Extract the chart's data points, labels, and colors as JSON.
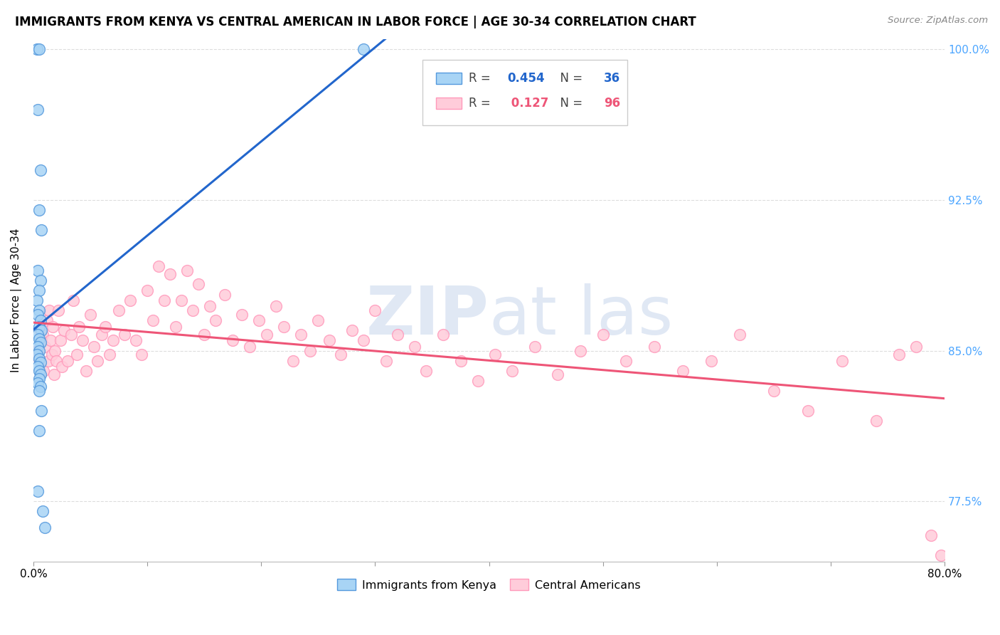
{
  "title": "IMMIGRANTS FROM KENYA VS CENTRAL AMERICAN IN LABOR FORCE | AGE 30-34 CORRELATION CHART",
  "source": "Source: ZipAtlas.com",
  "ylabel": "In Labor Force | Age 30-34",
  "xlim": [
    0.0,
    0.8
  ],
  "ylim": [
    0.745,
    1.005
  ],
  "xticks": [
    0.0,
    0.1,
    0.2,
    0.3,
    0.4,
    0.5,
    0.6,
    0.7,
    0.8
  ],
  "xticklabels": [
    "0.0%",
    "",
    "",
    "",
    "",
    "",
    "",
    "",
    "80.0%"
  ],
  "yticks": [
    0.775,
    0.85,
    0.925,
    1.0
  ],
  "yticklabels": [
    "77.5%",
    "85.0%",
    "92.5%",
    "100.0%"
  ],
  "right_ytick_color": "#4da6ff",
  "kenya_color": "#a8d4f5",
  "kenya_edge_color": "#5599dd",
  "central_color": "#ffccda",
  "central_edge_color": "#ff99bb",
  "kenya_line_color": "#2266cc",
  "central_line_color": "#ee5577",
  "grid_color": "#dddddd",
  "watermark_color": "#ccd9ee",
  "legend_kenya_label": "Immigrants from Kenya",
  "legend_central_label": "Central Americans",
  "r_kenya": 0.454,
  "n_kenya": 36,
  "r_central": 0.127,
  "n_central": 96,
  "kenya_x": [
    0.003,
    0.005,
    0.004,
    0.006,
    0.005,
    0.007,
    0.004,
    0.006,
    0.005,
    0.003,
    0.005,
    0.004,
    0.006,
    0.005,
    0.007,
    0.004,
    0.005,
    0.006,
    0.004,
    0.005,
    0.003,
    0.005,
    0.006,
    0.004,
    0.005,
    0.006,
    0.005,
    0.004,
    0.006,
    0.005,
    0.007,
    0.005,
    0.004,
    0.008,
    0.01,
    0.29
  ],
  "kenya_y": [
    1.0,
    1.0,
    0.97,
    0.94,
    0.92,
    0.91,
    0.89,
    0.885,
    0.88,
    0.875,
    0.87,
    0.868,
    0.865,
    0.862,
    0.86,
    0.858,
    0.856,
    0.854,
    0.852,
    0.85,
    0.848,
    0.846,
    0.844,
    0.842,
    0.84,
    0.838,
    0.836,
    0.834,
    0.832,
    0.83,
    0.82,
    0.81,
    0.78,
    0.77,
    0.762,
    1.0
  ],
  "central_x": [
    0.003,
    0.004,
    0.005,
    0.006,
    0.007,
    0.008,
    0.009,
    0.01,
    0.012,
    0.013,
    0.014,
    0.015,
    0.016,
    0.017,
    0.018,
    0.019,
    0.02,
    0.022,
    0.024,
    0.025,
    0.027,
    0.03,
    0.033,
    0.035,
    0.038,
    0.04,
    0.043,
    0.046,
    0.05,
    0.053,
    0.056,
    0.06,
    0.063,
    0.067,
    0.07,
    0.075,
    0.08,
    0.085,
    0.09,
    0.095,
    0.1,
    0.105,
    0.11,
    0.115,
    0.12,
    0.125,
    0.13,
    0.135,
    0.14,
    0.145,
    0.15,
    0.155,
    0.16,
    0.168,
    0.175,
    0.183,
    0.19,
    0.198,
    0.205,
    0.213,
    0.22,
    0.228,
    0.235,
    0.243,
    0.25,
    0.26,
    0.27,
    0.28,
    0.29,
    0.3,
    0.31,
    0.32,
    0.335,
    0.345,
    0.36,
    0.375,
    0.39,
    0.405,
    0.42,
    0.44,
    0.46,
    0.48,
    0.5,
    0.52,
    0.545,
    0.57,
    0.595,
    0.62,
    0.65,
    0.68,
    0.71,
    0.74,
    0.76,
    0.775,
    0.788,
    0.797
  ],
  "central_y": [
    0.85,
    0.848,
    0.846,
    0.86,
    0.855,
    0.858,
    0.84,
    0.852,
    0.865,
    0.845,
    0.87,
    0.855,
    0.848,
    0.862,
    0.838,
    0.85,
    0.845,
    0.87,
    0.855,
    0.842,
    0.86,
    0.845,
    0.858,
    0.875,
    0.848,
    0.862,
    0.855,
    0.84,
    0.868,
    0.852,
    0.845,
    0.858,
    0.862,
    0.848,
    0.855,
    0.87,
    0.858,
    0.875,
    0.855,
    0.848,
    0.88,
    0.865,
    0.892,
    0.875,
    0.888,
    0.862,
    0.875,
    0.89,
    0.87,
    0.883,
    0.858,
    0.872,
    0.865,
    0.878,
    0.855,
    0.868,
    0.852,
    0.865,
    0.858,
    0.872,
    0.862,
    0.845,
    0.858,
    0.85,
    0.865,
    0.855,
    0.848,
    0.86,
    0.855,
    0.87,
    0.845,
    0.858,
    0.852,
    0.84,
    0.858,
    0.845,
    0.835,
    0.848,
    0.84,
    0.852,
    0.838,
    0.85,
    0.858,
    0.845,
    0.852,
    0.84,
    0.845,
    0.858,
    0.83,
    0.82,
    0.845,
    0.815,
    0.848,
    0.852,
    0.758,
    0.748
  ]
}
